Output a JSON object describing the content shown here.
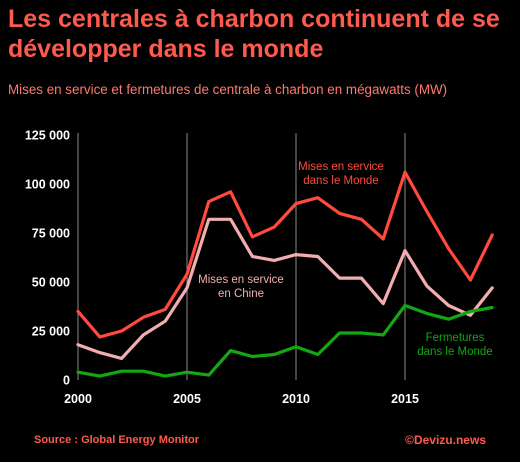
{
  "title": "Les centrales à charbon continuent de se développer dans le monde",
  "subtitle": "Mises en service et fermetures de centrale à charbon en mégawatts (MW)",
  "source": "Source : Global Energy Monitor",
  "credit": "©Devizu.news",
  "chart_data": {
    "type": "line",
    "x": [
      2000,
      2001,
      2002,
      2003,
      2004,
      2005,
      2006,
      2007,
      2008,
      2009,
      2010,
      2011,
      2012,
      2013,
      2014,
      2015,
      2016,
      2017,
      2018,
      2019
    ],
    "xticks": [
      "2000",
      "2005",
      "2010",
      "2015"
    ],
    "xlim": [
      2000,
      2020
    ],
    "yticks": [
      "0",
      "25 000",
      "50 000",
      "75 000",
      "100 000",
      "125 000"
    ],
    "ylim": [
      0,
      125000
    ],
    "series": [
      {
        "name": "Mises en service dans le Monde",
        "color": "#ff4a3d",
        "values": [
          35000,
          22000,
          25000,
          32000,
          36000,
          54000,
          91000,
          96000,
          73000,
          78000,
          90000,
          93000,
          85000,
          82000,
          72000,
          106000,
          86000,
          67000,
          51000,
          74000
        ]
      },
      {
        "name": "Mises en service en Chine",
        "color": "#f2aeae",
        "values": [
          18000,
          14000,
          11000,
          23000,
          30000,
          47000,
          82000,
          82000,
          63000,
          61000,
          64000,
          63000,
          52000,
          52000,
          39000,
          66000,
          48000,
          38000,
          33000,
          47000
        ]
      },
      {
        "name": "Fermetures dans le Monde",
        "color": "#11a811",
        "values": [
          4000,
          2000,
          4500,
          4500,
          2000,
          4000,
          2500,
          15000,
          12000,
          13000,
          17000,
          13000,
          24000,
          24000,
          23000,
          38000,
          34000,
          31000,
          35000,
          37000
        ]
      }
    ],
    "labels": [
      [
        "Mises en service",
        "dans le Monde"
      ],
      [
        "Mises en service",
        "en Chine"
      ],
      [
        "Fermetures",
        "dans le Monde"
      ]
    ],
    "grid": "vertical",
    "legend": "inline labels"
  }
}
